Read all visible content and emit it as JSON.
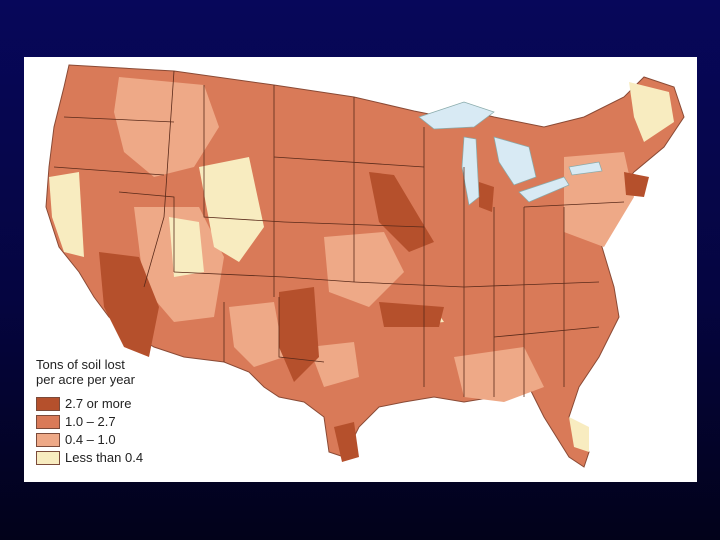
{
  "legend": {
    "title_line1": "Tons of soil lost",
    "title_line2": "per acre per year",
    "items": [
      {
        "label": "2.7 or more",
        "color": "#b5502c"
      },
      {
        "label": "1.0 – 2.7",
        "color": "#d97a58"
      },
      {
        "label": "0.4 – 1.0",
        "color": "#eea987"
      },
      {
        "label": "Less than 0.4",
        "color": "#f8ecc0"
      }
    ]
  },
  "colors": {
    "background_top": "#07075a",
    "background_bottom": "#02021a",
    "lakes": "#d8eaf4",
    "state_lines": "#5a2a1a"
  }
}
